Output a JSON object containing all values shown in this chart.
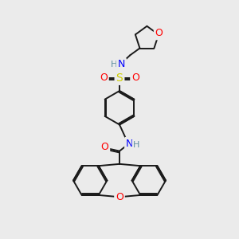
{
  "background_color": "#ebebeb",
  "bond_color": "#1a1a1a",
  "atom_colors": {
    "O": "#ff0000",
    "N": "#0000ff",
    "S": "#cccc00",
    "H": "#5f8fa0"
  },
  "lw": 1.4,
  "fs": 8
}
